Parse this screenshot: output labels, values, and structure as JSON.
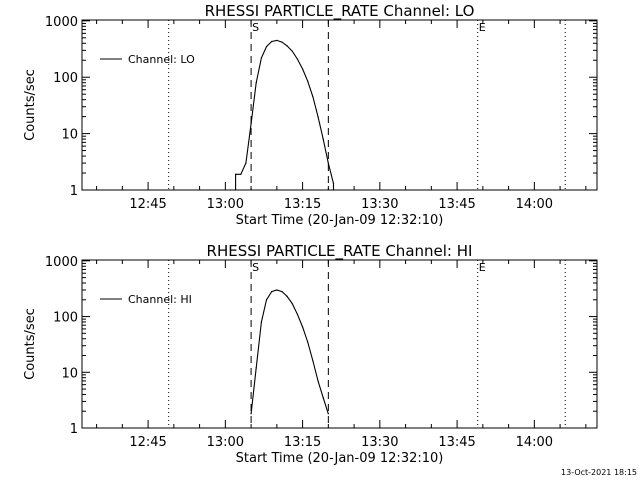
{
  "timestamp": "13-Oct-2021 18:15",
  "chart_data": [
    {
      "type": "line",
      "title": "RHESSI PARTICLE_RATE Channel: LO",
      "xlabel": "Start Time (20-Jan-09 12:32:10)",
      "ylabel": "Counts/sec",
      "yscale": "log",
      "ylim": [
        1,
        1000
      ],
      "xlim": [
        "12:32",
        "14:12"
      ],
      "x_ticks": [
        "12:45",
        "13:00",
        "13:15",
        "13:30",
        "13:45",
        "14:00"
      ],
      "y_ticks": [
        "1",
        "10",
        "100",
        "1000"
      ],
      "legend": {
        "label": "Channel: LO",
        "placement": "top-left"
      },
      "markers": [
        {
          "label": "",
          "time": "12:49",
          "style": "dotted"
        },
        {
          "label": "S",
          "time": "13:05",
          "style": "dashed"
        },
        {
          "label": "",
          "time": "13:20",
          "style": "dashed"
        },
        {
          "label": "E",
          "time": "13:49",
          "style": "dotted"
        },
        {
          "label": "",
          "time": "14:06",
          "style": "dotted"
        }
      ],
      "series": [
        {
          "name": "Channel: LO",
          "x": [
            "13:01",
            "13:02",
            "13:02",
            "13:03",
            "13:04",
            "13:05",
            "13:06",
            "13:07",
            "13:08",
            "13:09",
            "13:10",
            "13:11",
            "13:12",
            "13:13",
            "13:14",
            "13:15",
            "13:16",
            "13:17",
            "13:18",
            "13:19",
            "13:20",
            "13:21",
            "13:21"
          ],
          "y": [
            1,
            1,
            1.9,
            1.9,
            3,
            15,
            80,
            220,
            350,
            430,
            450,
            420,
            360,
            290,
            210,
            140,
            85,
            45,
            20,
            8,
            3,
            1.3,
            1
          ]
        }
      ]
    },
    {
      "type": "line",
      "title": "RHESSI PARTICLE_RATE Channel: HI",
      "xlabel": "Start Time (20-Jan-09 12:32:10)",
      "ylabel": "Counts/sec",
      "yscale": "log",
      "ylim": [
        1,
        1000
      ],
      "xlim": [
        "12:32",
        "14:12"
      ],
      "x_ticks": [
        "12:45",
        "13:00",
        "13:15",
        "13:30",
        "13:45",
        "14:00"
      ],
      "y_ticks": [
        "1",
        "10",
        "100",
        "1000"
      ],
      "legend": {
        "label": "Channel: HI",
        "placement": "top-left"
      },
      "markers": [
        {
          "label": "",
          "time": "12:49",
          "style": "dotted"
        },
        {
          "label": "S",
          "time": "13:05",
          "style": "dashed"
        },
        {
          "label": "",
          "time": "13:20",
          "style": "dashed"
        },
        {
          "label": "E",
          "time": "13:49",
          "style": "dotted"
        },
        {
          "label": "",
          "time": "14:06",
          "style": "dotted"
        }
      ],
      "series": [
        {
          "name": "Channel: HI",
          "x": [
            "13:05",
            "13:06",
            "13:07",
            "13:08",
            "13:09",
            "13:10",
            "13:11",
            "13:12",
            "13:13",
            "13:14",
            "13:15",
            "13:16",
            "13:17",
            "13:18",
            "13:19",
            "13:20"
          ],
          "y": [
            1.8,
            12,
            80,
            200,
            280,
            300,
            280,
            230,
            170,
            110,
            65,
            35,
            16,
            7,
            3.5,
            1.8
          ]
        }
      ]
    }
  ]
}
